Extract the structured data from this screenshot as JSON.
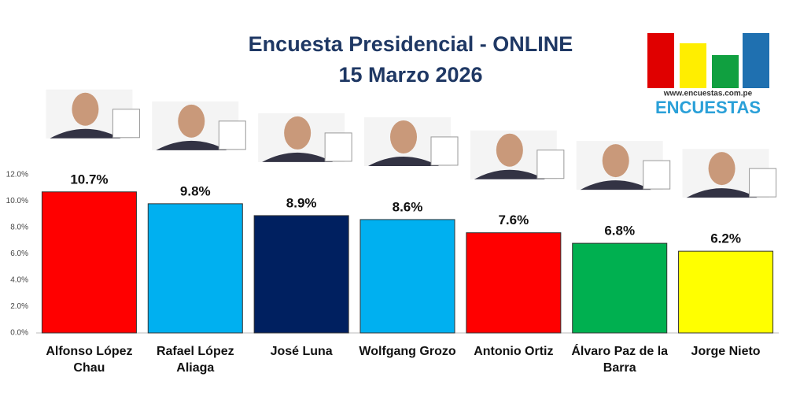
{
  "chart_data": {
    "type": "bar",
    "title": "Encuesta Presidencial - ONLINE",
    "subtitle": "15 Marzo 2026",
    "logo_url": "www.encuestas.com.pe",
    "logo_name": "ENCUESTAS",
    "categories": [
      "Alfonso López Chau",
      "Rafael López Aliaga",
      "José Luna",
      "Wolfgang Grozo",
      "Antonio Ortiz",
      "Álvaro Paz de la Barra",
      "Jorge Nieto"
    ],
    "values": [
      10.7,
      9.8,
      8.9,
      8.6,
      7.6,
      6.8,
      6.2
    ],
    "value_labels": [
      "10.7%",
      "9.8%",
      "8.9%",
      "8.6%",
      "7.6%",
      "6.8%",
      "6.2%"
    ],
    "colors": [
      "#ff0000",
      "#00b0f0",
      "#002060",
      "#00b0f0",
      "#ff0000",
      "#00b050",
      "#ffff00"
    ],
    "ylim": [
      0,
      12
    ],
    "yticks": [
      {
        "value": 0,
        "label": "0.0%"
      },
      {
        "value": 2,
        "label": "2.0%"
      },
      {
        "value": 4,
        "label": "4.0%"
      },
      {
        "value": 6,
        "label": "6.0%"
      },
      {
        "value": 8,
        "label": "8.0%"
      },
      {
        "value": 10,
        "label": "10.0%"
      },
      {
        "value": 12,
        "label": "12.0%"
      }
    ],
    "grid": false
  }
}
